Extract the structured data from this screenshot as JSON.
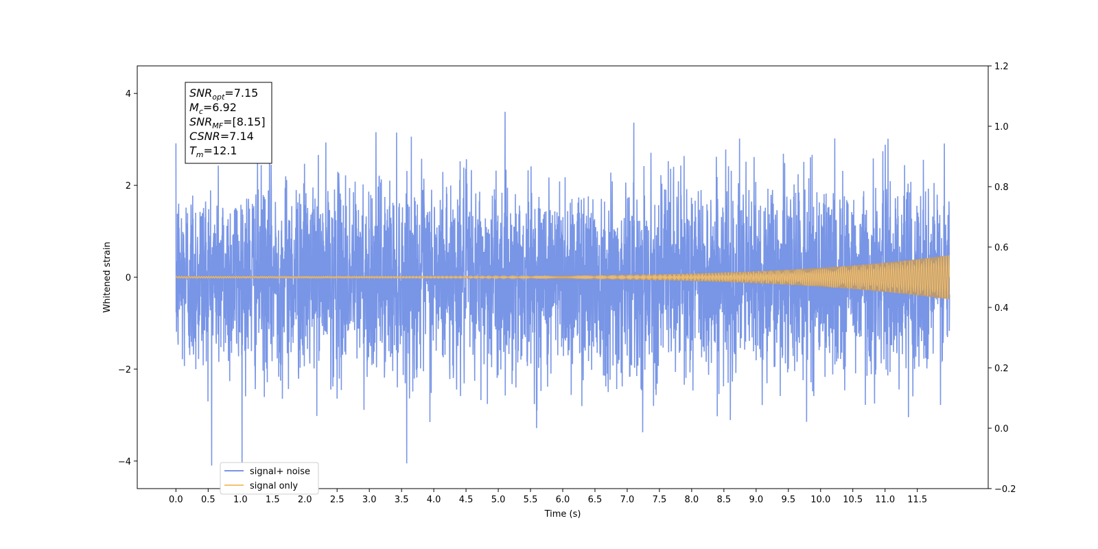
{
  "chart_data": {
    "type": "line",
    "xlabel": "Time (s)",
    "ylabel": "Whitened strain",
    "xlim": [
      -0.6,
      12.6
    ],
    "ylim": [
      -4.6,
      4.6
    ],
    "x_ticks": [
      0.0,
      0.5,
      1.0,
      1.5,
      2.0,
      2.5,
      3.0,
      3.5,
      4.0,
      4.5,
      5.0,
      5.5,
      6.0,
      6.5,
      7.0,
      7.5,
      8.0,
      8.5,
      9.0,
      9.5,
      10.0,
      10.5,
      11.0,
      11.5
    ],
    "x_tick_labels": [
      "0.0",
      "0.5",
      "1.0",
      "1.5",
      "2.0",
      "2.5",
      "3.0",
      "3.5",
      "4.0",
      "4.5",
      "5.0",
      "5.5",
      "6.0",
      "6.5",
      "7.0",
      "7.5",
      "8.0",
      "8.5",
      "9.0",
      "9.5",
      "10.0",
      "10.5",
      "11.0",
      "11.5"
    ],
    "y_ticks": [
      -4,
      -2,
      0,
      2,
      4
    ],
    "y_tick_labels": [
      "−4",
      "−2",
      "0",
      "2",
      "4"
    ],
    "y2_lim": [
      -0.2,
      1.2
    ],
    "y2_ticks": [
      -0.2,
      0.0,
      0.2,
      0.4,
      0.6,
      0.8,
      1.0,
      1.2
    ],
    "y2_tick_labels": [
      "−0.2",
      "0.0",
      "0.2",
      "0.4",
      "0.6",
      "0.8",
      "1.0",
      "1.2"
    ],
    "series": [
      {
        "name": "signal+ noise",
        "color": "#7895e6",
        "x_range": [
          0.0,
          12.0
        ],
        "description_values": {
          "typical_amplitude": 2.0,
          "max": 4.2,
          "min": -4.1
        }
      },
      {
        "name": "signal only",
        "color": "#f5c16e",
        "x_range": [
          0.0,
          12.0
        ],
        "envelope_start": 0.02,
        "envelope_end": 0.48
      }
    ],
    "annotation": {
      "lines": [
        {
          "symbol": "SNR",
          "sub": "opt",
          "value": "=7.15"
        },
        {
          "symbol": "M",
          "sub": "c",
          "value": "=6.92"
        },
        {
          "symbol": "SNR",
          "sub": "MF",
          "value": "=[8.15]"
        },
        {
          "symbol": "CSNR",
          "sub": "",
          "value": "=7.14"
        },
        {
          "symbol": "T",
          "sub": "m",
          "value": "=12.1"
        }
      ]
    },
    "legend": {
      "placement": "lower-left",
      "entries": [
        "signal+ noise",
        "signal only"
      ]
    },
    "grid": false
  }
}
